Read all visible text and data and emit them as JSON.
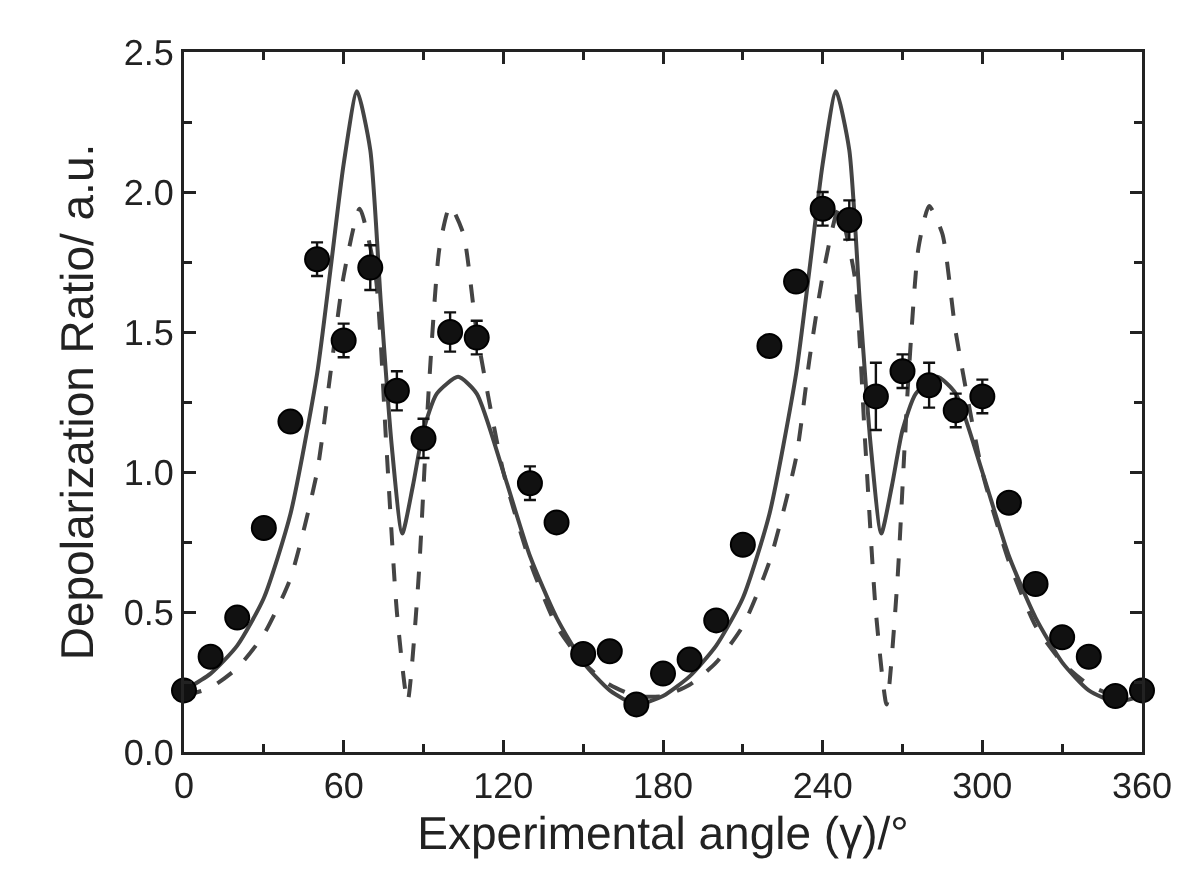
{
  "chart_data": {
    "type": "scatter",
    "xlabel": "Experimental angle (γ)/°",
    "ylabel": "Depolarization Ratio/ a.u.",
    "xlim": [
      0,
      360
    ],
    "xticks": [
      0,
      60,
      120,
      180,
      240,
      300,
      360
    ],
    "ylim": [
      0,
      2.5
    ],
    "yticks": [
      {
        "value": 0,
        "label": "0.0"
      },
      {
        "value": 0.5,
        "label": "0.5"
      },
      {
        "value": 1,
        "label": "1.0"
      },
      {
        "value": 1.5,
        "label": "1.5"
      },
      {
        "value": 2,
        "label": "2.0"
      },
      {
        "value": 2.5,
        "label": "2.5"
      }
    ],
    "grid": false,
    "legend": false,
    "series": [
      {
        "color": "#111111",
        "marker": "circle",
        "x": [
          0,
          10,
          20,
          30,
          40,
          50,
          60,
          70,
          80,
          90,
          100,
          110,
          130,
          140,
          150,
          160,
          170,
          180,
          190,
          200,
          210,
          220,
          230,
          240,
          250,
          260,
          270,
          280,
          290,
          300,
          310,
          320,
          330,
          340,
          350,
          360
        ],
        "values": [
          0.22,
          0.34,
          0.48,
          0.8,
          1.18,
          1.76,
          1.47,
          1.73,
          1.29,
          1.12,
          1.5,
          1.48,
          0.96,
          0.82,
          0.35,
          0.36,
          0.17,
          0.28,
          0.33,
          0.47,
          0.74,
          1.45,
          1.68,
          1.94,
          1.9,
          1.27,
          1.36,
          1.31,
          1.22,
          1.27,
          0.89,
          0.6,
          0.41,
          0.34,
          0.2,
          0.22
        ],
        "errors": [
          null,
          null,
          null,
          null,
          null,
          0.06,
          0.06,
          0.08,
          0.07,
          0.07,
          0.07,
          0.06,
          0.06,
          null,
          null,
          null,
          null,
          null,
          null,
          null,
          null,
          null,
          null,
          0.06,
          0.07,
          0.12,
          0.06,
          0.08,
          0.06,
          0.06,
          null,
          null,
          null,
          null,
          null,
          null
        ]
      },
      {
        "type": "line",
        "color": "#444444",
        "line_style": "solid",
        "marker": "none",
        "x": [
          0,
          10,
          20,
          30,
          40,
          50,
          55,
          60,
          65,
          70,
          74,
          78,
          82,
          86,
          90,
          95,
          103,
          110,
          120,
          130,
          140,
          150,
          160,
          170,
          180,
          190,
          200,
          210,
          220,
          230,
          235,
          240,
          245,
          250,
          254,
          258,
          262,
          266,
          270,
          275,
          283,
          290,
          300,
          310,
          320,
          330,
          340,
          350,
          360
        ],
        "values": [
          0.22,
          0.28,
          0.38,
          0.55,
          0.85,
          1.35,
          1.72,
          2.1,
          2.36,
          2.15,
          1.6,
          1.1,
          0.78,
          0.95,
          1.15,
          1.28,
          1.34,
          1.28,
          1.0,
          0.7,
          0.48,
          0.32,
          0.22,
          0.17,
          0.2,
          0.27,
          0.38,
          0.55,
          0.85,
          1.35,
          1.72,
          2.1,
          2.36,
          2.15,
          1.6,
          1.1,
          0.78,
          0.95,
          1.15,
          1.28,
          1.34,
          1.28,
          1.0,
          0.7,
          0.48,
          0.32,
          0.22,
          0.18,
          0.2
        ]
      },
      {
        "type": "line",
        "color": "#444444",
        "line_style": "dashed",
        "marker": "none",
        "x": [
          0,
          10,
          20,
          30,
          40,
          50,
          55,
          60,
          66,
          72,
          76,
          80,
          84,
          88,
          92,
          96,
          100,
          105,
          110,
          120,
          130,
          140,
          150,
          160,
          170,
          180,
          190,
          200,
          210,
          220,
          230,
          235,
          240,
          246,
          252,
          256,
          260,
          264,
          268,
          272,
          276,
          280,
          285,
          290,
          300,
          310,
          320,
          330,
          340,
          350,
          360
        ],
        "values": [
          0.2,
          0.23,
          0.3,
          0.42,
          0.62,
          1.0,
          1.35,
          1.7,
          1.94,
          1.7,
          1.1,
          0.5,
          0.18,
          0.6,
          1.3,
          1.8,
          1.95,
          1.85,
          1.5,
          1.0,
          0.68,
          0.45,
          0.32,
          0.24,
          0.2,
          0.2,
          0.24,
          0.32,
          0.45,
          0.68,
          1.05,
          1.4,
          1.7,
          1.94,
          1.7,
          1.1,
          0.5,
          0.17,
          0.6,
          1.3,
          1.8,
          1.95,
          1.85,
          1.5,
          1.0,
          0.68,
          0.45,
          0.32,
          0.24,
          0.2,
          0.2
        ]
      }
    ]
  }
}
